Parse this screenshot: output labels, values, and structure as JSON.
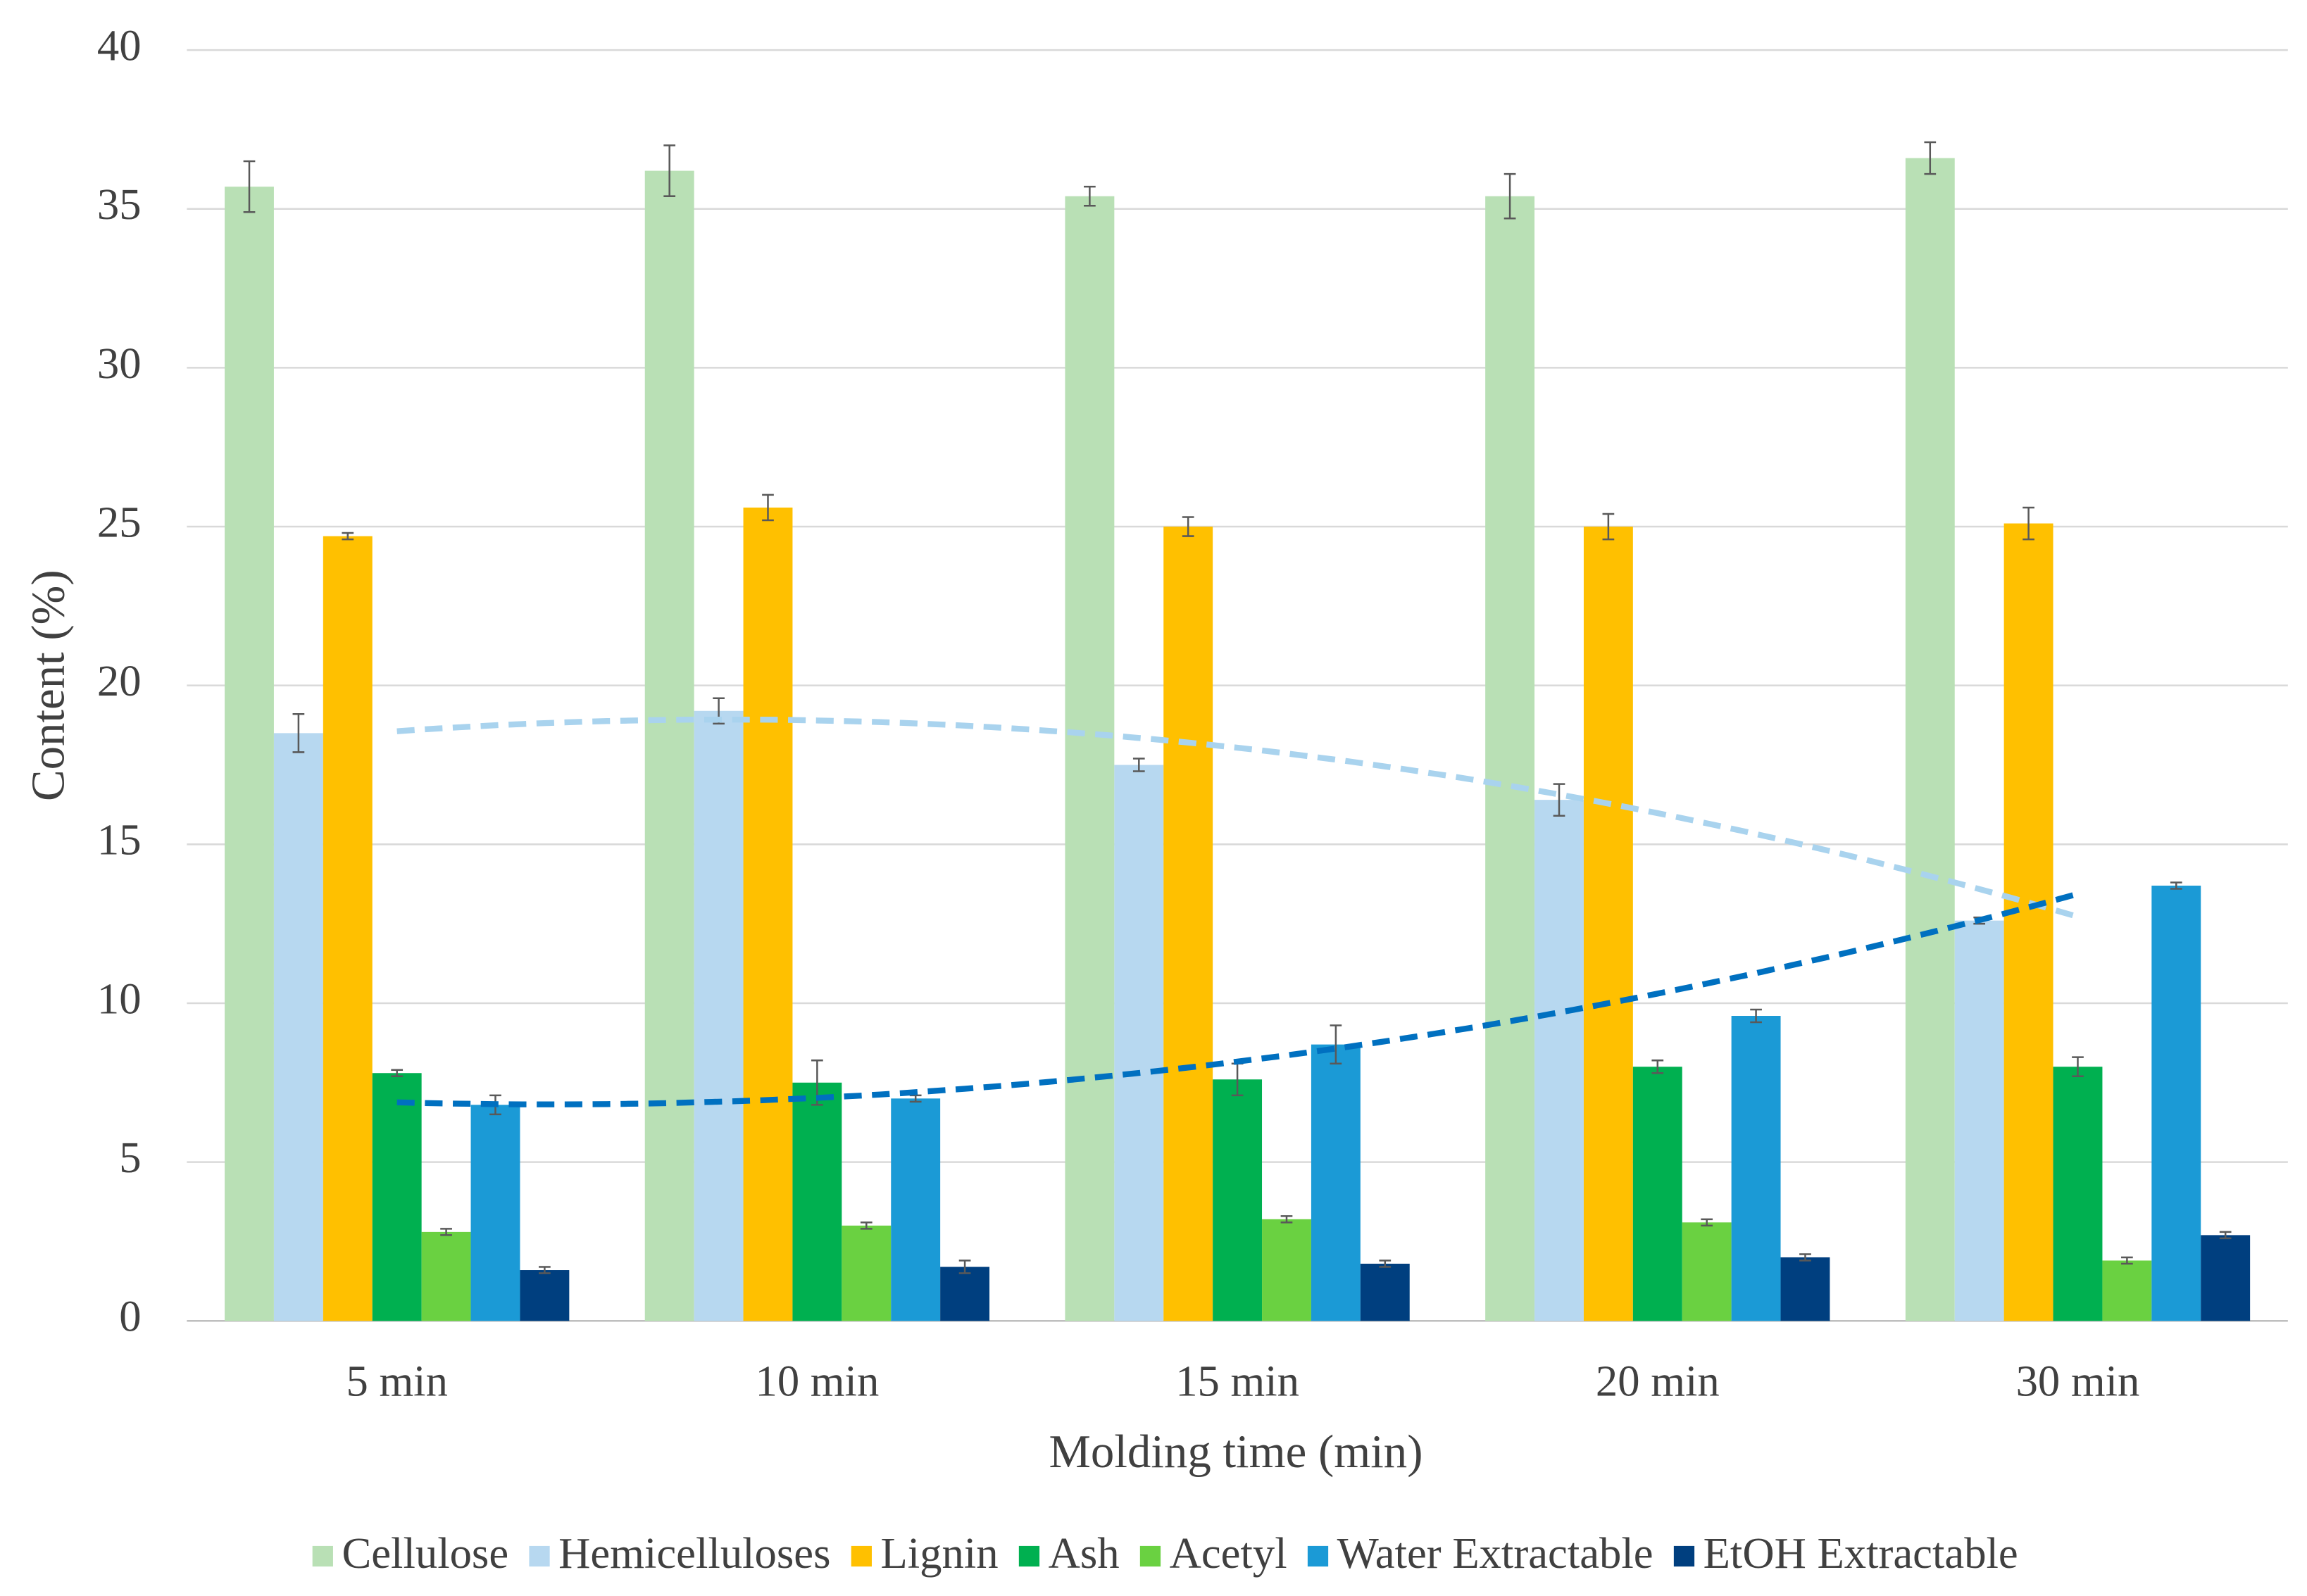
{
  "chart_data": {
    "type": "bar",
    "x_label": "Molding time (min)",
    "y_label": "Content (%)",
    "categories": [
      "5 min",
      "10 min",
      "15 min",
      "20 min",
      "30 min"
    ],
    "ylim": [
      0,
      40
    ],
    "yticks": [
      0,
      5,
      10,
      15,
      20,
      25,
      30,
      35,
      40
    ],
    "grid": true,
    "legend": "bottom",
    "series": [
      {
        "name": "Cellulose",
        "color": "#b9e0b5",
        "values": [
          35.7,
          36.2,
          35.4,
          35.4,
          36.6
        ],
        "errors": [
          0.8,
          0.8,
          0.3,
          0.7,
          0.5
        ]
      },
      {
        "name": "Hemicelluloses",
        "color": "#b7d8f0",
        "values": [
          18.5,
          19.2,
          17.5,
          16.4,
          12.6
        ],
        "errors": [
          0.6,
          0.4,
          0.2,
          0.5,
          0.1
        ],
        "trendline": "polynomial",
        "trendline_color": "#a9d3ee"
      },
      {
        "name": "Lignin",
        "color": "#ffc000",
        "values": [
          24.7,
          25.6,
          25.0,
          25.0,
          25.1
        ],
        "errors": [
          0.1,
          0.4,
          0.3,
          0.4,
          0.5
        ]
      },
      {
        "name": "Ash",
        "color": "#00b050",
        "values": [
          7.8,
          7.5,
          7.6,
          8.0,
          8.0
        ],
        "errors": [
          0.1,
          0.7,
          0.5,
          0.2,
          0.3
        ]
      },
      {
        "name": "Acetyl",
        "color": "#6ad141",
        "values": [
          2.8,
          3.0,
          3.2,
          3.1,
          1.9
        ],
        "errors": [
          0.1,
          0.1,
          0.1,
          0.1,
          0.1
        ]
      },
      {
        "name": "Water Extractable",
        "color": "#1b9ad6",
        "values": [
          6.8,
          7.0,
          8.7,
          9.6,
          13.7
        ],
        "errors": [
          0.3,
          0.1,
          0.6,
          0.2,
          0.1
        ],
        "trendline": "polynomial",
        "trendline_color": "#0070c0"
      },
      {
        "name": "EtOH Extractable",
        "color": "#003f7f",
        "values": [
          1.6,
          1.7,
          1.8,
          2.0,
          2.7
        ],
        "errors": [
          0.1,
          0.2,
          0.1,
          0.1,
          0.1
        ]
      }
    ]
  }
}
